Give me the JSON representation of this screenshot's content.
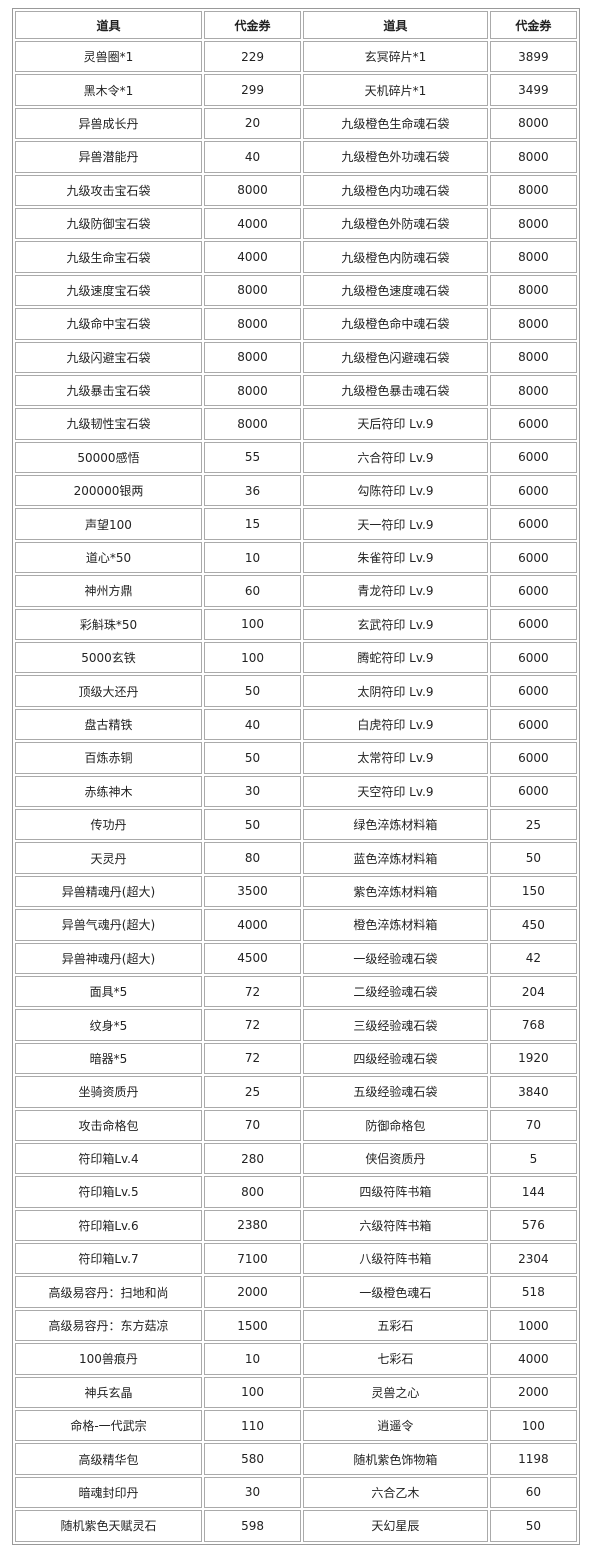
{
  "table": {
    "header": [
      "道具",
      "代金券",
      "道具",
      "代金券"
    ],
    "rows": [
      [
        "灵兽圈*1",
        229,
        "玄冥碎片*1",
        3899
      ],
      [
        "黑木令*1",
        299,
        "天机碎片*1",
        3499
      ],
      [
        "异兽成长丹",
        20,
        "九级橙色生命魂石袋",
        8000
      ],
      [
        "异兽潜能丹",
        40,
        "九级橙色外功魂石袋",
        8000
      ],
      [
        "九级攻击宝石袋",
        8000,
        "九级橙色内功魂石袋",
        8000
      ],
      [
        "九级防御宝石袋",
        4000,
        "九级橙色外防魂石袋",
        8000
      ],
      [
        "九级生命宝石袋",
        4000,
        "九级橙色内防魂石袋",
        8000
      ],
      [
        "九级速度宝石袋",
        8000,
        "九级橙色速度魂石袋",
        8000
      ],
      [
        "九级命中宝石袋",
        8000,
        "九级橙色命中魂石袋",
        8000
      ],
      [
        "九级闪避宝石袋",
        8000,
        "九级橙色闪避魂石袋",
        8000
      ],
      [
        "九级暴击宝石袋",
        8000,
        "九级橙色暴击魂石袋",
        8000
      ],
      [
        "九级韧性宝石袋",
        8000,
        "天后符印 Lv.9",
        6000
      ],
      [
        "50000感悟",
        55,
        "六合符印 Lv.9",
        6000
      ],
      [
        "200000银两",
        36,
        "勾陈符印 Lv.9",
        6000
      ],
      [
        "声望100",
        15,
        "天一符印 Lv.9",
        6000
      ],
      [
        "道心*50",
        10,
        "朱雀符印 Lv.9",
        6000
      ],
      [
        "神州方鼎",
        60,
        "青龙符印 Lv.9",
        6000
      ],
      [
        "彩斛珠*50",
        100,
        "玄武符印 Lv.9",
        6000
      ],
      [
        "5000玄铁",
        100,
        "腾蛇符印 Lv.9",
        6000
      ],
      [
        "顶级大还丹",
        50,
        "太阴符印 Lv.9",
        6000
      ],
      [
        "盘古精铁",
        40,
        "白虎符印 Lv.9",
        6000
      ],
      [
        "百炼赤铜",
        50,
        "太常符印 Lv.9",
        6000
      ],
      [
        "赤练神木",
        30,
        "天空符印 Lv.9",
        6000
      ],
      [
        "传功丹",
        50,
        "绿色淬炼材料箱",
        25
      ],
      [
        "天灵丹",
        80,
        "蓝色淬炼材料箱",
        50
      ],
      [
        "异兽精魂丹(超大)",
        3500,
        "紫色淬炼材料箱",
        150
      ],
      [
        "异兽气魂丹(超大)",
        4000,
        "橙色淬炼材料箱",
        450
      ],
      [
        "异兽神魂丹(超大)",
        4500,
        "一级经验魂石袋",
        42
      ],
      [
        "面具*5",
        72,
        "二级经验魂石袋",
        204
      ],
      [
        "纹身*5",
        72,
        "三级经验魂石袋",
        768
      ],
      [
        "暗器*5",
        72,
        "四级经验魂石袋",
        1920
      ],
      [
        "坐骑资质丹",
        25,
        "五级经验魂石袋",
        3840
      ],
      [
        "攻击命格包",
        70,
        "防御命格包",
        70
      ],
      [
        "符印箱Lv.4",
        280,
        "侠侣资质丹",
        5
      ],
      [
        "符印箱Lv.5",
        800,
        "四级符阵书箱",
        144
      ],
      [
        "符印箱Lv.6",
        2380,
        "六级符阵书箱",
        576
      ],
      [
        "符印箱Lv.7",
        7100,
        "八级符阵书箱",
        2304
      ],
      [
        "高级易容丹：扫地和尚",
        2000,
        "一级橙色魂石",
        518
      ],
      [
        "高级易容丹：东方菇凉",
        1500,
        "五彩石",
        1000
      ],
      [
        "100兽痕丹",
        10,
        "七彩石",
        4000
      ],
      [
        "神兵玄晶",
        100,
        "灵兽之心",
        2000
      ],
      [
        "命格-一代武宗",
        110,
        "逍遥令",
        100
      ],
      [
        "高级精华包",
        580,
        "随机紫色饰物箱",
        1198
      ],
      [
        "暗魂封印丹",
        30,
        "六合乙木",
        60
      ],
      [
        "随机紫色天赋灵石",
        598,
        "天幻星辰",
        50
      ]
    ]
  }
}
